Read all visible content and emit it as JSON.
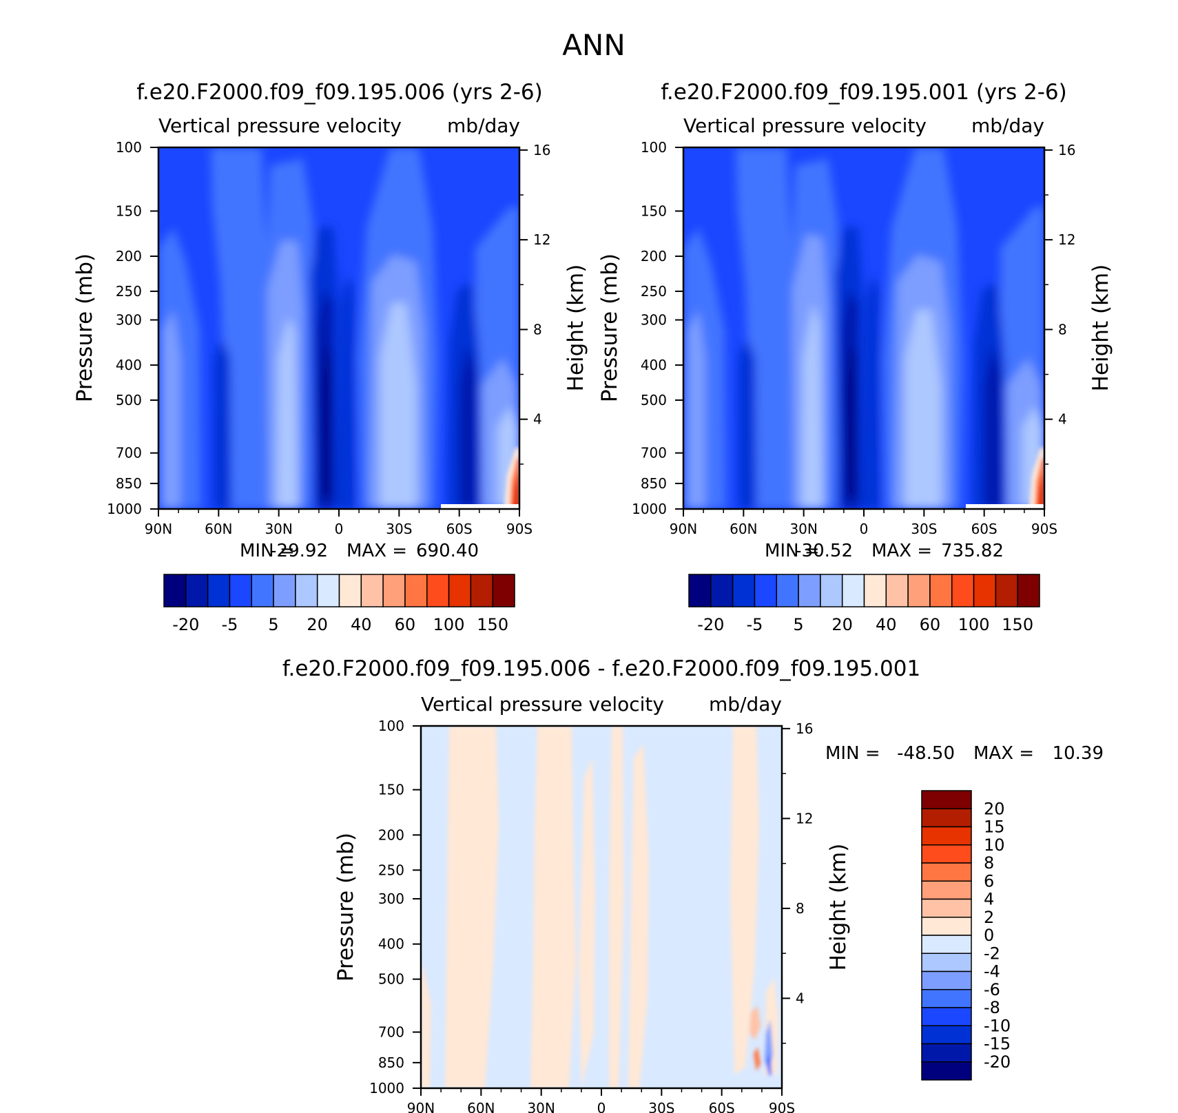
{
  "page_title": "ANN",
  "colors": {
    "full_scale": [
      "#00007f",
      "#0018aa",
      "#0031d5",
      "#1a47ff",
      "#4275ff",
      "#7d9eff",
      "#adc7ff",
      "#d9e9ff",
      "#ffe8d6",
      "#ffc2a6",
      "#ffa07a",
      "#ff7642",
      "#ff4c1c",
      "#e63300",
      "#b31d00",
      "#7f0000"
    ],
    "diff_scale": [
      "#00007f",
      "#0018aa",
      "#0031d5",
      "#1a47ff",
      "#4275ff",
      "#7d9eff",
      "#adc7ff",
      "#d9e9ff",
      "#ffe8d6",
      "#ffc2a6",
      "#ffa07a",
      "#ff7642",
      "#ff4c1c",
      "#e63300",
      "#b31d00",
      "#7f0000"
    ],
    "undefined": "#ffffff"
  },
  "chart_data": [
    {
      "type": "heatmap",
      "title": "f.e20.F2000.f09_f09.195.006 (yrs 2-6)",
      "subtitle": "Vertical pressure velocity",
      "units": "mb/day",
      "ylabel": "Pressure (mb)",
      "y2label": "Height (km)",
      "x_ticks": [
        "90N",
        "60N",
        "30N",
        "0",
        "30S",
        "60S",
        "90S"
      ],
      "y_ticks": [
        "100",
        "150",
        "200",
        "250",
        "300",
        "400",
        "500",
        "700",
        "850",
        "1000"
      ],
      "y2_ticks": [
        "16",
        "12",
        "8",
        "4"
      ],
      "stats": {
        "min_label": "MIN =",
        "min": "-29.92",
        "max_label": "MAX =",
        "max": "690.40"
      },
      "colorbar": {
        "orientation": "horizontal",
        "labels": [
          "-20",
          "-5",
          "5",
          "20",
          "40",
          "60",
          "100",
          "150"
        ]
      },
      "ylim": [
        1000,
        100
      ],
      "xlim": [
        90,
        -90
      ]
    },
    {
      "type": "heatmap",
      "title": "f.e20.F2000.f09_f09.195.001 (yrs 2-6)",
      "subtitle": "Vertical pressure velocity",
      "units": "mb/day",
      "ylabel": "Pressure (mb)",
      "y2label": "Height (km)",
      "x_ticks": [
        "90N",
        "60N",
        "30N",
        "0",
        "30S",
        "60S",
        "90S"
      ],
      "y_ticks": [
        "100",
        "150",
        "200",
        "250",
        "300",
        "400",
        "500",
        "700",
        "850",
        "1000"
      ],
      "y2_ticks": [
        "16",
        "12",
        "8",
        "4"
      ],
      "stats": {
        "min_label": "MIN =",
        "min": "-30.52",
        "max_label": "MAX =",
        "max": "735.82"
      },
      "colorbar": {
        "orientation": "horizontal",
        "labels": [
          "-20",
          "-5",
          "5",
          "20",
          "40",
          "60",
          "100",
          "150"
        ]
      },
      "ylim": [
        1000,
        100
      ],
      "xlim": [
        90,
        -90
      ]
    },
    {
      "type": "heatmap",
      "title": "f.e20.F2000.f09_f09.195.006 - f.e20.F2000.f09_f09.195.001",
      "subtitle": "Vertical pressure velocity",
      "units": "mb/day",
      "ylabel": "Pressure (mb)",
      "y2label": "Height (km)",
      "x_ticks": [
        "90N",
        "60N",
        "30N",
        "0",
        "30S",
        "60S",
        "90S"
      ],
      "y_ticks": [
        "100",
        "150",
        "200",
        "250",
        "300",
        "400",
        "500",
        "700",
        "850",
        "1000"
      ],
      "y2_ticks": [
        "16",
        "12",
        "8",
        "4"
      ],
      "stats": {
        "min_label": "MIN =",
        "min": "-48.50",
        "max_label": "MAX =",
        "max": "10.39"
      },
      "colorbar": {
        "orientation": "vertical",
        "labels": [
          "20",
          "15",
          "10",
          "8",
          "6",
          "4",
          "2",
          "0",
          "-2",
          "-4",
          "-6",
          "-8",
          "-10",
          "-15",
          "-20"
        ]
      },
      "ylim": [
        1000,
        100
      ],
      "xlim": [
        90,
        -90
      ]
    }
  ]
}
